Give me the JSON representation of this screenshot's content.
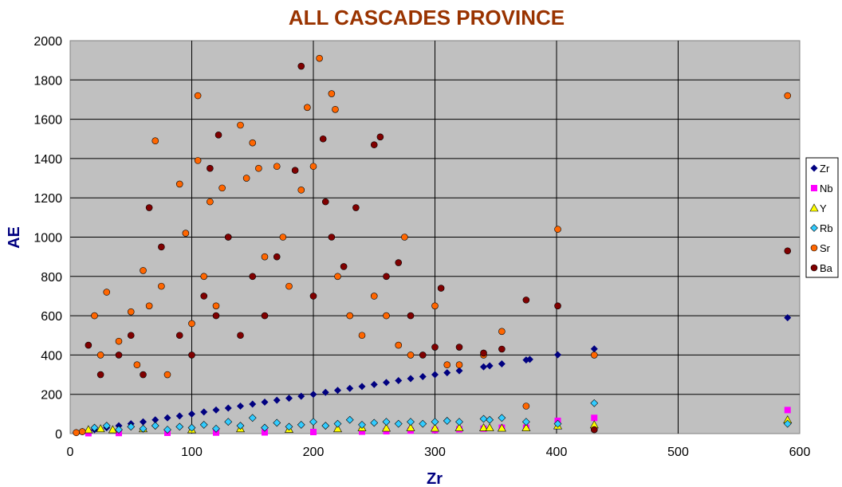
{
  "chart_data": {
    "type": "scatter",
    "title": "ALL CASCADES PROVINCE",
    "xlabel": "Zr",
    "ylabel": "AE",
    "xlim": [
      0,
      600
    ],
    "ylim": [
      0,
      2000
    ],
    "xticks": [
      "0",
      "100",
      "200",
      "300",
      "400",
      "500",
      "600"
    ],
    "yticks": [
      "0",
      "200",
      "400",
      "600",
      "800",
      "1000",
      "1200",
      "1400",
      "1600",
      "1800",
      "2000"
    ],
    "grid": true,
    "plot_background": "#c0c0c0",
    "legend_position": "right",
    "series": [
      {
        "name": "Zr",
        "color": "#000080",
        "marker": "diamond",
        "points": [
          [
            5,
            5
          ],
          [
            10,
            10
          ],
          [
            20,
            20
          ],
          [
            30,
            30
          ],
          [
            40,
            40
          ],
          [
            50,
            50
          ],
          [
            60,
            60
          ],
          [
            70,
            70
          ],
          [
            80,
            80
          ],
          [
            90,
            90
          ],
          [
            100,
            100
          ],
          [
            110,
            110
          ],
          [
            120,
            120
          ],
          [
            130,
            130
          ],
          [
            140,
            140
          ],
          [
            150,
            150
          ],
          [
            160,
            160
          ],
          [
            170,
            170
          ],
          [
            180,
            180
          ],
          [
            190,
            190
          ],
          [
            200,
            200
          ],
          [
            210,
            210
          ],
          [
            220,
            220
          ],
          [
            230,
            230
          ],
          [
            240,
            240
          ],
          [
            250,
            250
          ],
          [
            260,
            260
          ],
          [
            270,
            270
          ],
          [
            280,
            280
          ],
          [
            290,
            290
          ],
          [
            300,
            300
          ],
          [
            310,
            310
          ],
          [
            320,
            320
          ],
          [
            340,
            340
          ],
          [
            345,
            345
          ],
          [
            355,
            355
          ],
          [
            375,
            375
          ],
          [
            378,
            378
          ],
          [
            401,
            401
          ],
          [
            431,
            431
          ],
          [
            590,
            590
          ]
        ]
      },
      {
        "name": "Nb",
        "color": "#ff00ff",
        "marker": "square",
        "points": [
          [
            15,
            2
          ],
          [
            40,
            3
          ],
          [
            80,
            4
          ],
          [
            120,
            5
          ],
          [
            160,
            6
          ],
          [
            200,
            8
          ],
          [
            240,
            10
          ],
          [
            260,
            12
          ],
          [
            280,
            15
          ],
          [
            300,
            18
          ],
          [
            320,
            22
          ],
          [
            340,
            25
          ],
          [
            355,
            30
          ],
          [
            375,
            30
          ],
          [
            401,
            65
          ],
          [
            431,
            80
          ],
          [
            590,
            120
          ]
        ]
      },
      {
        "name": "Y",
        "color": "#ffff00",
        "marker": "triangle",
        "points": [
          [
            15,
            20
          ],
          [
            25,
            25
          ],
          [
            35,
            20
          ],
          [
            60,
            25
          ],
          [
            100,
            20
          ],
          [
            140,
            25
          ],
          [
            180,
            22
          ],
          [
            220,
            25
          ],
          [
            240,
            30
          ],
          [
            260,
            28
          ],
          [
            280,
            30
          ],
          [
            300,
            28
          ],
          [
            320,
            30
          ],
          [
            340,
            30
          ],
          [
            345,
            30
          ],
          [
            355,
            28
          ],
          [
            375,
            30
          ],
          [
            401,
            40
          ],
          [
            431,
            45
          ],
          [
            590,
            70
          ]
        ]
      },
      {
        "name": "Rb",
        "color": "#33ccff",
        "marker": "diamond",
        "points": [
          [
            20,
            30
          ],
          [
            30,
            40
          ],
          [
            40,
            20
          ],
          [
            50,
            35
          ],
          [
            60,
            25
          ],
          [
            70,
            40
          ],
          [
            80,
            20
          ],
          [
            90,
            35
          ],
          [
            100,
            30
          ],
          [
            110,
            45
          ],
          [
            120,
            25
          ],
          [
            130,
            60
          ],
          [
            140,
            40
          ],
          [
            150,
            80
          ],
          [
            160,
            30
          ],
          [
            170,
            55
          ],
          [
            180,
            35
          ],
          [
            190,
            45
          ],
          [
            200,
            60
          ],
          [
            210,
            40
          ],
          [
            220,
            50
          ],
          [
            230,
            70
          ],
          [
            240,
            45
          ],
          [
            250,
            55
          ],
          [
            260,
            60
          ],
          [
            270,
            50
          ],
          [
            280,
            60
          ],
          [
            290,
            50
          ],
          [
            300,
            60
          ],
          [
            310,
            65
          ],
          [
            320,
            60
          ],
          [
            340,
            75
          ],
          [
            345,
            70
          ],
          [
            355,
            80
          ],
          [
            375,
            60
          ],
          [
            401,
            50
          ],
          [
            431,
            155
          ],
          [
            590,
            50
          ]
        ]
      },
      {
        "name": "Sr",
        "color": "#ff6600",
        "marker": "circle",
        "points": [
          [
            5,
            5
          ],
          [
            10,
            10
          ],
          [
            20,
            600
          ],
          [
            25,
            400
          ],
          [
            30,
            720
          ],
          [
            40,
            470
          ],
          [
            50,
            620
          ],
          [
            55,
            350
          ],
          [
            60,
            830
          ],
          [
            65,
            650
          ],
          [
            70,
            1490
          ],
          [
            75,
            750
          ],
          [
            80,
            300
          ],
          [
            90,
            1270
          ],
          [
            95,
            1020
          ],
          [
            100,
            560
          ],
          [
            105,
            1720
          ],
          [
            105,
            1390
          ],
          [
            110,
            800
          ],
          [
            115,
            1180
          ],
          [
            120,
            650
          ],
          [
            125,
            1250
          ],
          [
            130,
            1000
          ],
          [
            140,
            1570
          ],
          [
            145,
            1300
          ],
          [
            150,
            1480
          ],
          [
            155,
            1350
          ],
          [
            160,
            900
          ],
          [
            170,
            1360
          ],
          [
            175,
            1000
          ],
          [
            180,
            750
          ],
          [
            190,
            1240
          ],
          [
            195,
            1660
          ],
          [
            200,
            1360
          ],
          [
            205,
            1910
          ],
          [
            215,
            1730
          ],
          [
            218,
            1650
          ],
          [
            220,
            800
          ],
          [
            230,
            600
          ],
          [
            240,
            500
          ],
          [
            250,
            700
          ],
          [
            260,
            600
          ],
          [
            270,
            450
          ],
          [
            275,
            1000
          ],
          [
            280,
            400
          ],
          [
            300,
            650
          ],
          [
            310,
            350
          ],
          [
            320,
            350
          ],
          [
            340,
            400
          ],
          [
            355,
            520
          ],
          [
            375,
            140
          ],
          [
            401,
            1040
          ],
          [
            431,
            400
          ],
          [
            590,
            1720
          ]
        ]
      },
      {
        "name": "Ba",
        "color": "#800000",
        "marker": "circle",
        "points": [
          [
            15,
            450
          ],
          [
            25,
            300
          ],
          [
            40,
            400
          ],
          [
            50,
            500
          ],
          [
            60,
            300
          ],
          [
            65,
            1150
          ],
          [
            75,
            950
          ],
          [
            90,
            500
          ],
          [
            100,
            400
          ],
          [
            110,
            700
          ],
          [
            115,
            1350
          ],
          [
            120,
            600
          ],
          [
            122,
            1520
          ],
          [
            130,
            1000
          ],
          [
            140,
            500
          ],
          [
            150,
            800
          ],
          [
            160,
            600
          ],
          [
            170,
            900
          ],
          [
            185,
            1340
          ],
          [
            190,
            1870
          ],
          [
            200,
            700
          ],
          [
            208,
            1500
          ],
          [
            210,
            1180
          ],
          [
            215,
            1000
          ],
          [
            225,
            850
          ],
          [
            235,
            1150
          ],
          [
            250,
            1470
          ],
          [
            255,
            1510
          ],
          [
            260,
            800
          ],
          [
            270,
            870
          ],
          [
            280,
            600
          ],
          [
            290,
            400
          ],
          [
            300,
            440
          ],
          [
            305,
            740
          ],
          [
            320,
            440
          ],
          [
            340,
            410
          ],
          [
            355,
            430
          ],
          [
            375,
            680
          ],
          [
            401,
            650
          ],
          [
            431,
            20
          ],
          [
            590,
            930
          ]
        ]
      }
    ]
  }
}
